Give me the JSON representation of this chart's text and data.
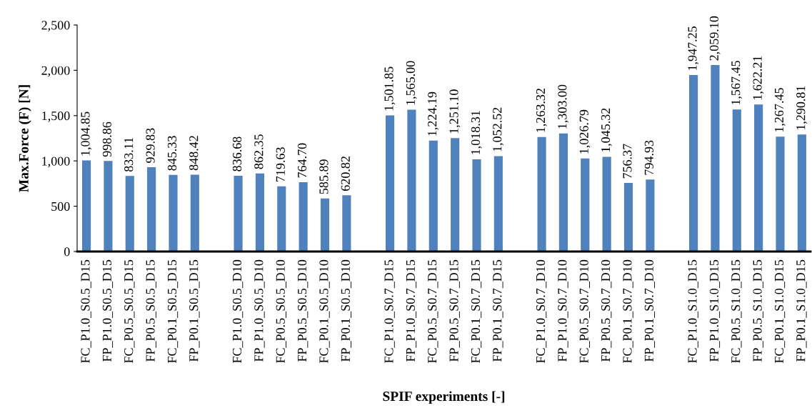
{
  "chart_data": {
    "type": "bar",
    "xlabel": "SPIF experiments [-]",
    "ylabel": "Max.Force (F) [N]",
    "categories": [
      "FC_P1.0_S0.5_D15",
      "FP_P1.0_S0.5_D15",
      "FC_P0.5_S0.5_D15",
      "FP_P0.5_S0.5_D15",
      "FC_P0.1_S0.5_D15",
      "FP_P0.1_S0.5_D15",
      null,
      "FC_P1.0_S0.5_D10",
      "FP_P1.0_S0.5_D10",
      "FC_P0.5_S0.5_D10",
      "FP_P0.5_S0.5_D10",
      "FC_P0.1_S0.5_D10",
      "FP_P0.1_S0.5_D10",
      null,
      "FC_P1.0_S0.7_D15",
      "FP_P1.0_S0.7_D15",
      "FC_P0.5_S0.7_D15",
      "FP_P0.5_S0.7_D15",
      "FC_P0.1_S0.7_D15",
      "FP_P0.1_S0.7_D15",
      null,
      "FC_P1.0_S0.7_D10",
      "FP_P1.0_S0.7_D10",
      "FC_P0.5_S0.7_D10",
      "FP_P0.5_S0.7_D10",
      "FC_P0.1_S0.7_D10",
      "FP_P0.1_S0.7_D10",
      null,
      "FC_P1.0_S1.0_D15",
      "FP_P1.0_S1.0_D15",
      "FC_P0.5_S1.0_D15",
      "FP_P0.5_S1.0_D15",
      "FC_P0.1_S1.0_D15",
      "FP_P0.1_S1.0_D15"
    ],
    "values": [
      1004.85,
      998.86,
      833.11,
      929.83,
      845.33,
      848.42,
      null,
      836.68,
      862.35,
      719.63,
      764.7,
      585.89,
      620.82,
      null,
      1501.85,
      1565.0,
      1224.19,
      1251.1,
      1018.31,
      1052.52,
      null,
      1263.32,
      1303.0,
      1026.79,
      1045.32,
      756.37,
      794.93,
      null,
      1947.25,
      2059.1,
      1567.45,
      1622.21,
      1267.45,
      1290.81
    ],
    "value_labels": [
      "1,004.85",
      "998.86",
      "833.11",
      "929.83",
      "845.33",
      "848.42",
      null,
      "836.68",
      "862.35",
      "719.63",
      "764.70",
      "585.89",
      "620.82",
      null,
      "1,501.85",
      "1,565.00",
      "1,224.19",
      "1,251.10",
      "1,018.31",
      "1,052.52",
      null,
      "1,263.32",
      "1,303.00",
      "1,026.79",
      "1,045.32",
      "756.37",
      "794.93",
      null,
      "1,947.25",
      "2,059.10",
      "1,567.45",
      "1,622.21",
      "1,267.45",
      "1,290.81"
    ],
    "color": "#4f81bd",
    "ylim": [
      0,
      2500
    ],
    "yticks": [
      {
        "value": 0,
        "label": "0"
      },
      {
        "value": 500,
        "label": "500"
      },
      {
        "value": 1000,
        "label": "1,000"
      },
      {
        "value": 1500,
        "label": "1,500"
      },
      {
        "value": 2000,
        "label": "2,000"
      },
      {
        "value": 2500,
        "label": "2,500"
      }
    ],
    "grid": false,
    "legend": false
  }
}
